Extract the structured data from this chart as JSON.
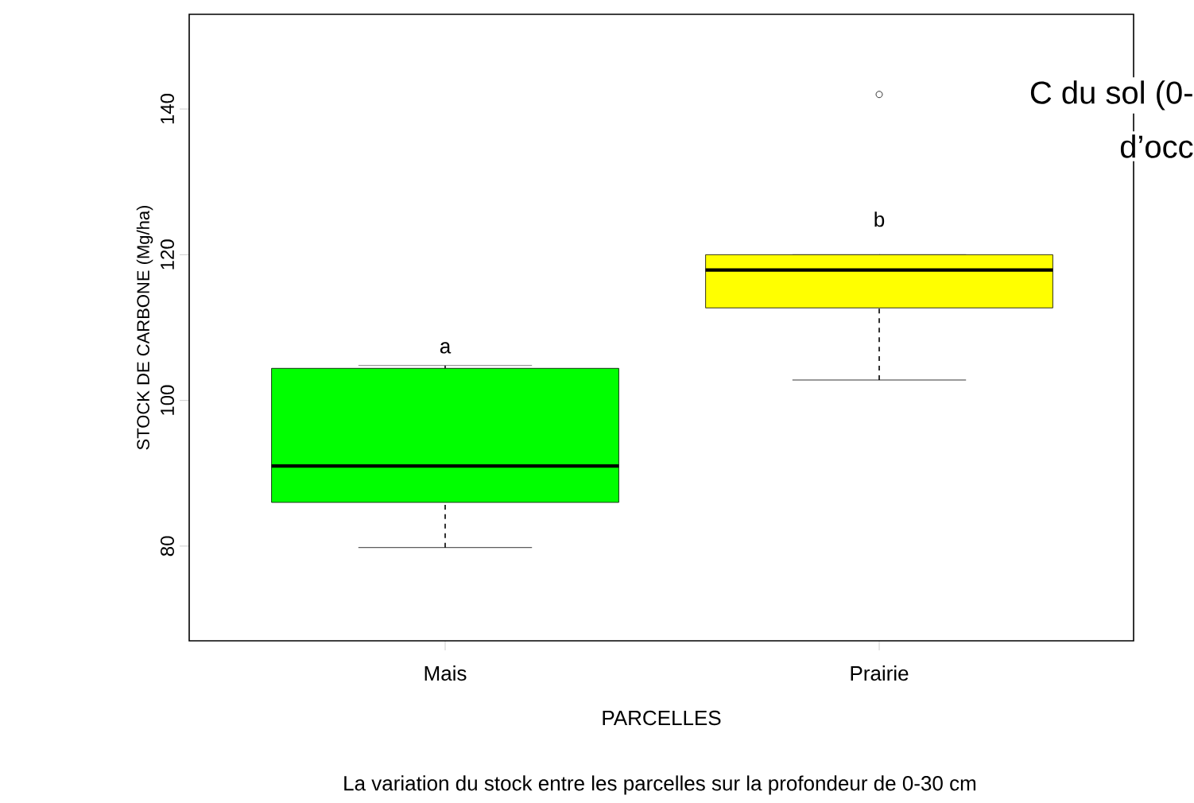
{
  "chart_data": {
    "type": "box",
    "xlabel": "PARCELLES",
    "ylabel": "STOCK DE CARBONE (Mg/ha)",
    "categories": [
      "Mais",
      "Prairie"
    ],
    "colors": [
      "#00ff00",
      "#ffff00"
    ],
    "boxes": [
      {
        "low": 79.8,
        "q1": 86.0,
        "median": 91.0,
        "q3": 104.4,
        "high": 104.8
      },
      {
        "low": 102.8,
        "q1": 112.7,
        "median": 117.9,
        "q3": 120.0,
        "high": 120.0,
        "outliers": [
          142
        ]
      }
    ],
    "marker": "circle",
    "ylim": [
      67,
      153
    ],
    "yticks": [
      80,
      100,
      120,
      140
    ],
    "annotations": [
      "La variation du stock entre les parcelles sur la profondeur de 0-30 cm",
      "C du sol (0-",
      "d’occ",
      "a",
      "b"
    ]
  }
}
